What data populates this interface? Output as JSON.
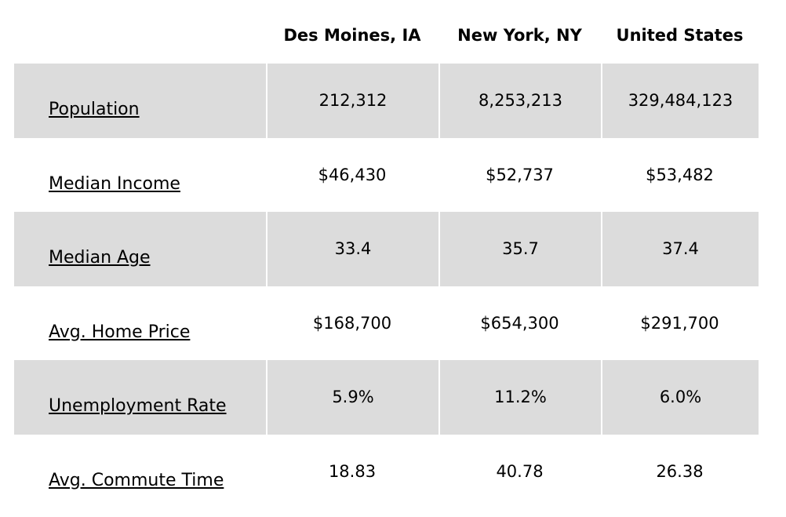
{
  "columns": [
    "Des Moines, IA",
    "New York, NY",
    "United States"
  ],
  "rows": [
    {
      "label": "Population",
      "values": [
        "212,312",
        "8,253,213",
        "329,484,123"
      ],
      "shaded": true
    },
    {
      "label": "Median Income",
      "values": [
        "$46,430",
        "$52,737",
        "$53,482"
      ],
      "shaded": false
    },
    {
      "label": "Median Age",
      "values": [
        "33.4",
        "35.7",
        "37.4"
      ],
      "shaded": true
    },
    {
      "label": "Avg. Home Price",
      "values": [
        "$168,700",
        "$654,300",
        "$291,700"
      ],
      "shaded": false
    },
    {
      "label": "Unemployment Rate",
      "values": [
        "5.9%",
        "11.2%",
        "6.0%"
      ],
      "shaded": true
    },
    {
      "label": "Avg. Commute Time",
      "values": [
        "18.83",
        "40.78",
        "26.38"
      ],
      "shaded": false
    }
  ],
  "colors": {
    "shade": "#dcdcdc",
    "text": "#000000",
    "background": "#ffffff"
  }
}
